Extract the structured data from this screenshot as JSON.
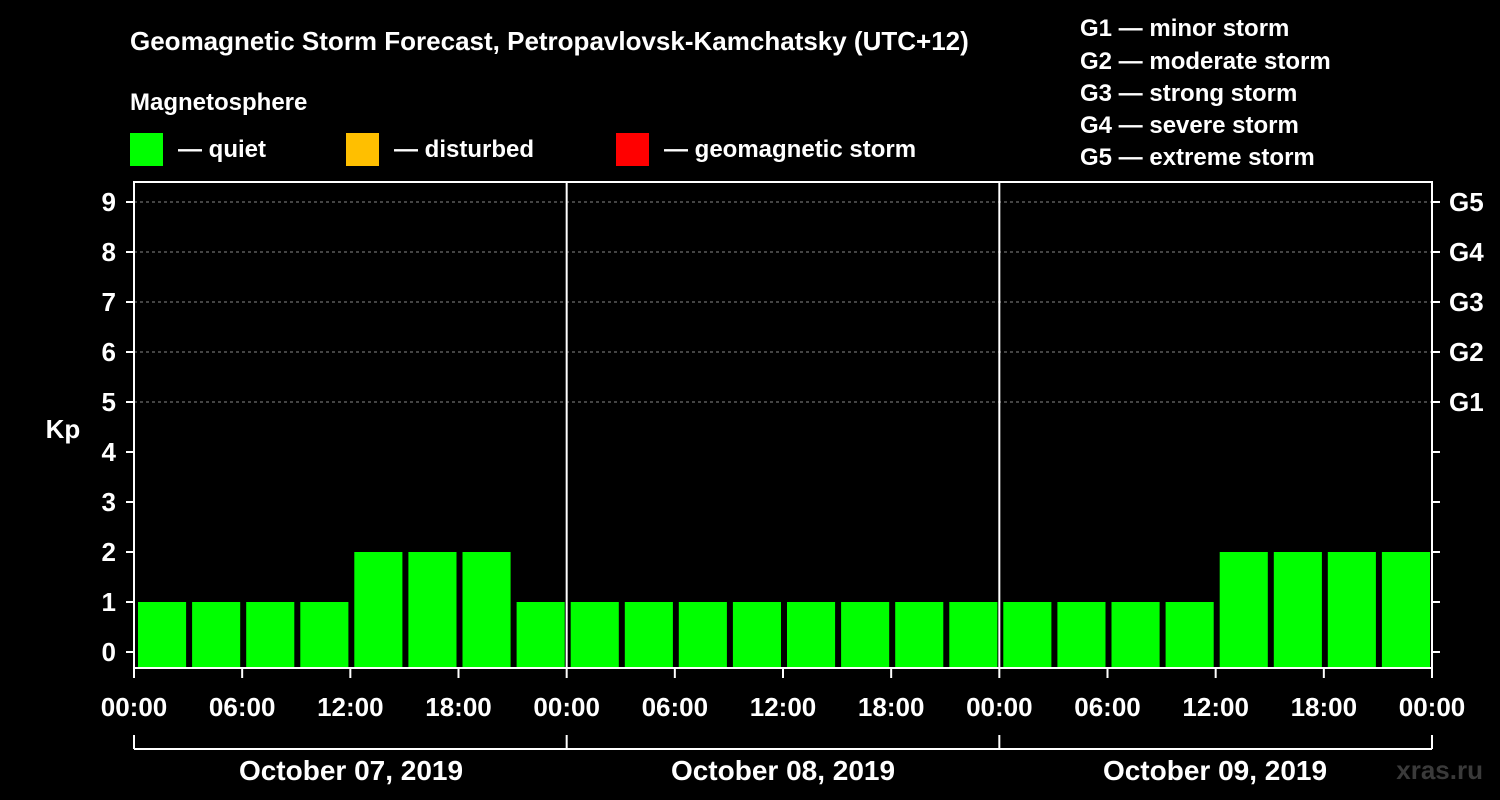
{
  "chart_data": {
    "type": "bar",
    "title": "Geomagnetic Storm Forecast, Petropavlovsk-Kamchatsky (UTC+12)",
    "legend_title": "Magnetosphere",
    "legend": [
      {
        "label": "— quiet",
        "color": "#00ff00"
      },
      {
        "label": "— disturbed",
        "color": "#ffbf00"
      },
      {
        "label": "— geomagnetic storm",
        "color": "#ff0000"
      }
    ],
    "storm_scale": [
      "G1 — minor storm",
      "G2 — moderate storm",
      "G3 — strong storm",
      "G4 — severe storm",
      "G5 — extreme storm"
    ],
    "ylabel": "Kp",
    "ylim": [
      0,
      9
    ],
    "y_ticks": [
      "0",
      "1",
      "2",
      "3",
      "4",
      "5",
      "6",
      "7",
      "8",
      "9"
    ],
    "right_ticks": [
      {
        "kp": 5,
        "label": "G1"
      },
      {
        "kp": 6,
        "label": "G2"
      },
      {
        "kp": 7,
        "label": "G3"
      },
      {
        "kp": 8,
        "label": "G4"
      },
      {
        "kp": 9,
        "label": "G5"
      }
    ],
    "x_ticks": [
      "00:00",
      "06:00",
      "12:00",
      "18:00",
      "00:00",
      "06:00",
      "12:00",
      "18:00",
      "00:00",
      "06:00",
      "12:00",
      "18:00",
      "00:00"
    ],
    "days": [
      "October 07, 2019",
      "October 08, 2019",
      "October 09, 2019"
    ],
    "interval_hours": 3,
    "values": [
      1,
      1,
      1,
      1,
      2,
      2,
      2,
      1,
      1,
      1,
      1,
      1,
      1,
      1,
      1,
      1,
      1,
      1,
      1,
      1,
      2,
      2,
      2,
      2
    ],
    "bar_color": "#00ff00",
    "grid": true
  },
  "watermark": "xras.ru"
}
